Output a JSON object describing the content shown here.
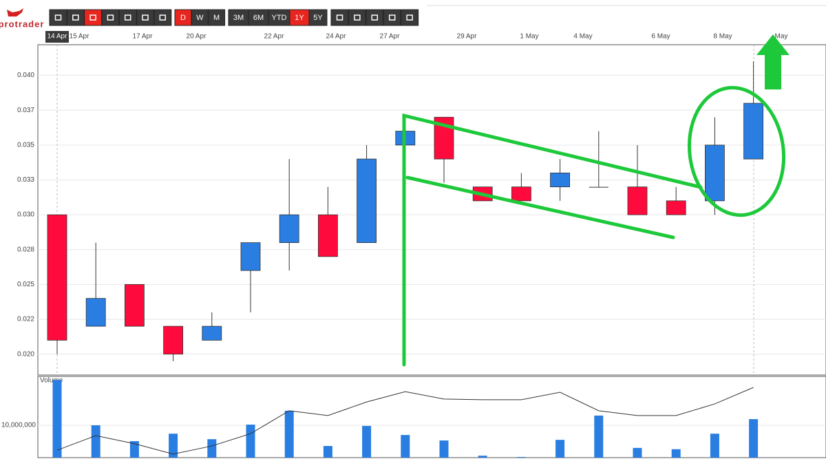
{
  "toolbar": {
    "logo": "protrader",
    "period_buttons": [
      "D",
      "W",
      "M"
    ],
    "range_buttons": [
      "3M",
      "6M",
      "YTD",
      "1Y",
      "5Y"
    ],
    "active_period": "D",
    "active_range": "1Y"
  },
  "chart_data": {
    "type": "candlestick",
    "x_labels": [
      "14 Apr",
      "15 Apr",
      "17 Apr",
      "20 Apr",
      "22 Apr",
      "24 Apr",
      "27 Apr",
      "29 Apr",
      "1 May",
      "4 May",
      "6 May",
      "8 May",
      "May"
    ],
    "open": [
      0.03,
      0.022,
      0.025,
      0.022,
      0.021,
      0.026,
      0.028,
      0.03,
      0.028,
      0.035,
      0.037,
      0.032,
      0.032,
      0.032,
      0.032,
      0.032,
      0.031,
      0.031,
      0.034
    ],
    "high": [
      0.03,
      0.028,
      0.025,
      0.022,
      0.023,
      0.028,
      0.034,
      0.032,
      0.035,
      0.036,
      0.037,
      0.032,
      0.033,
      0.034,
      0.036,
      0.035,
      0.032,
      0.037,
      0.041
    ],
    "low": [
      0.02,
      0.022,
      0.022,
      0.0195,
      0.021,
      0.023,
      0.026,
      0.027,
      0.028,
      0.035,
      0.0323,
      0.031,
      0.031,
      0.031,
      0.032,
      0.03,
      0.03,
      0.03,
      0.034
    ],
    "close": [
      0.021,
      0.024,
      0.022,
      0.02,
      0.022,
      0.028,
      0.03,
      0.027,
      0.034,
      0.036,
      0.034,
      0.031,
      0.031,
      0.033,
      0.032,
      0.03,
      0.03,
      0.035,
      0.038
    ],
    "up_color": "#2a7de1",
    "down_color": "#ff0a3c",
    "ylim": [
      0.0185,
      0.0422
    ],
    "yticks": [
      {
        "value": 0.02,
        "label": "0.020"
      },
      {
        "value": 0.0225,
        "label": "0.022"
      },
      {
        "value": 0.025,
        "label": "0.025"
      },
      {
        "value": 0.0275,
        "label": "0.028"
      },
      {
        "value": 0.03,
        "label": "0.030"
      },
      {
        "value": 0.0325,
        "label": "0.033"
      },
      {
        "value": 0.035,
        "label": "0.035"
      },
      {
        "value": 0.0375,
        "label": "0.037"
      },
      {
        "value": 0.04,
        "label": "0.040"
      }
    ],
    "grid": true,
    "volume": {
      "label": "Volume",
      "color": "#2a7de1",
      "line_color": "#333333",
      "values": [
        24000000,
        10000000,
        5100000,
        7400000,
        5700000,
        10200000,
        14500000,
        3600000,
        9800000,
        7000000,
        5300000,
        600000,
        200000,
        5500000,
        13000000,
        3000000,
        2600000,
        7400000,
        11900000
      ],
      "average": [
        2300000,
        6800000,
        4300000,
        1100000,
        3600000,
        7400000,
        14500000,
        13000000,
        17200000,
        20400000,
        18100000,
        17900000,
        17900000,
        20200000,
        14500000,
        13000000,
        13000000,
        16600000,
        21700000
      ],
      "ylim": [
        0,
        25100000
      ],
      "yticks": [
        {
          "value": 10000000,
          "label": "10,000,000"
        }
      ]
    }
  }
}
